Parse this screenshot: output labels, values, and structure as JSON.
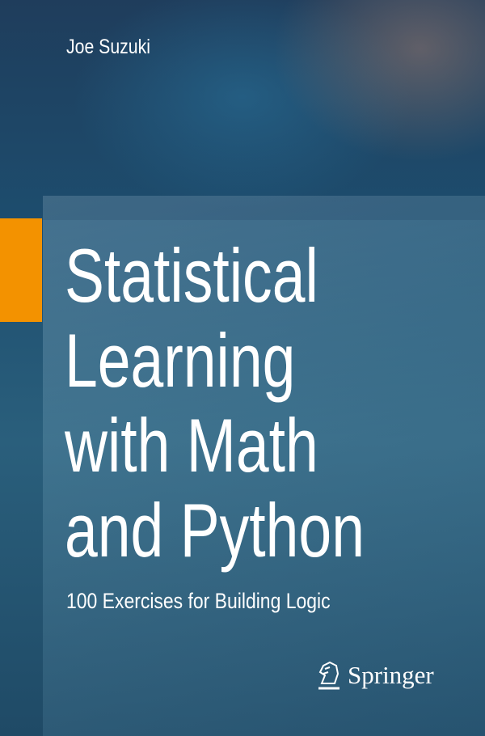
{
  "author": "Joe Suzuki",
  "title_lines": [
    "Statistical",
    "Learning",
    "with Math",
    "and Python"
  ],
  "subtitle": "100 Exercises for Building Logic",
  "publisher": {
    "name": "Springer",
    "icon": "knight-horse-icon"
  },
  "colors": {
    "accent": "#f39200",
    "background": "#1d4d6e"
  }
}
